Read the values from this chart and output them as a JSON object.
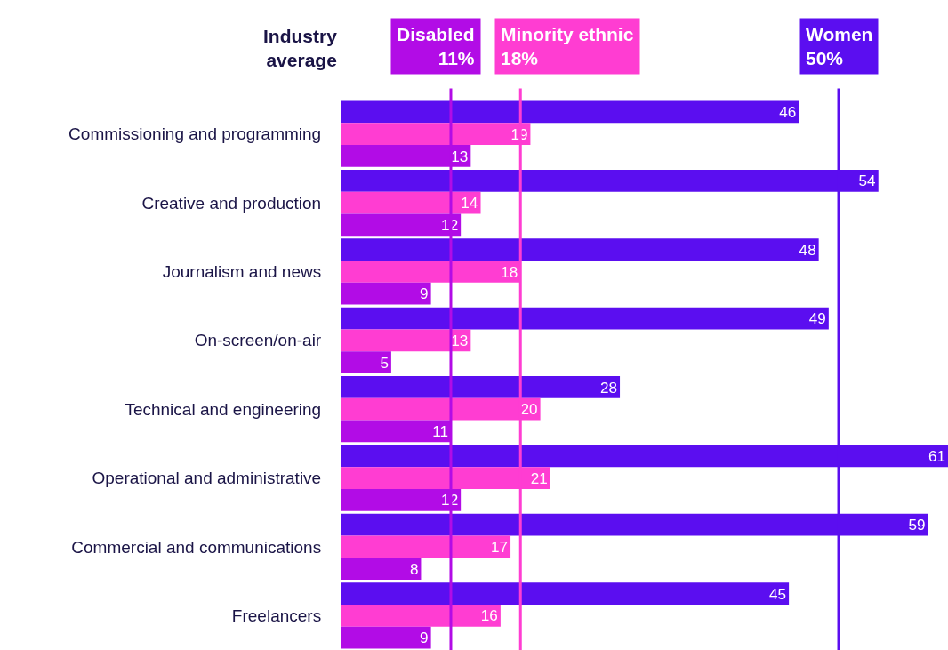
{
  "chart_data": {
    "type": "bar",
    "orientation": "horizontal",
    "categories": [
      "Commissioning and programming",
      "Creative and production",
      "Journalism and news",
      "On-screen/on-air",
      "Technical and engineering",
      "Operational and administrative",
      "Commercial and communications",
      "Freelancers"
    ],
    "series": [
      {
        "color": "#5b0ef0",
        "values": [
          46,
          54,
          48,
          49,
          28,
          61,
          59,
          45
        ]
      },
      {
        "color": "#ff3dd2",
        "values": [
          19,
          14,
          18,
          13,
          20,
          21,
          17,
          16
        ]
      },
      {
        "color": "#b20ce6",
        "values": [
          13,
          12,
          9,
          5,
          11,
          12,
          8,
          9
        ]
      }
    ],
    "xlim": [
      0,
      61
    ],
    "tick_labels": "y",
    "data_labels": true,
    "ref_lines": [
      {
        "axis": "x",
        "value": 11,
        "label": "Disabled\n11%",
        "color": "#b20ce6"
      },
      {
        "axis": "x",
        "value": 18,
        "label": "Minority ethnic\n18%",
        "color": "#ff3dd2"
      },
      {
        "axis": "x",
        "value": 50,
        "label": "Women\n50%",
        "color": "#5b0ef0"
      }
    ],
    "annotations": [
      "Industry\naverage"
    ]
  }
}
